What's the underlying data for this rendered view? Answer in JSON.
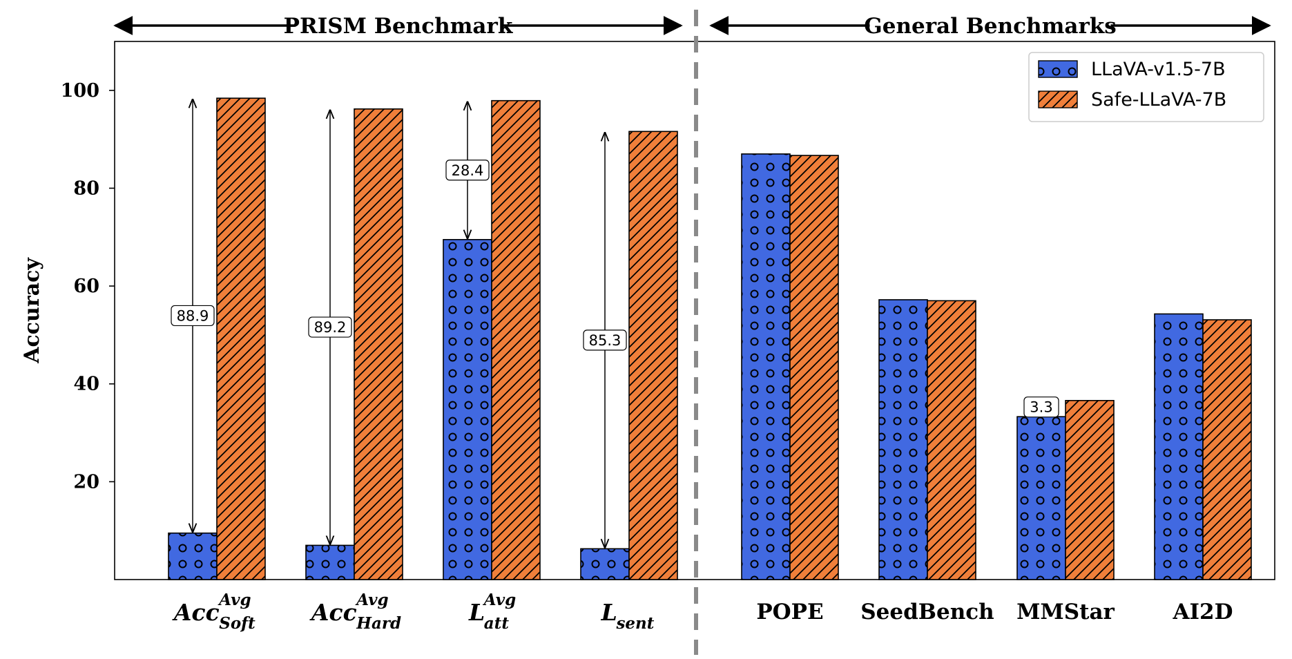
{
  "chart_data": {
    "type": "bar",
    "ylabel": "Accuracy",
    "ylim": [
      0,
      110
    ],
    "yticks": [
      "20",
      "40",
      "60",
      "80",
      "100"
    ],
    "categories": [
      {
        "id": "acc-soft",
        "base": "Acc",
        "sup": "Avg",
        "sub": "Soft"
      },
      {
        "id": "acc-hard",
        "base": "Acc",
        "sup": "Avg",
        "sub": "Hard"
      },
      {
        "id": "l-att",
        "base": "L",
        "sup": "Avg",
        "sub": "att"
      },
      {
        "id": "l-sent",
        "base": "L",
        "sup": "",
        "sub": "sent"
      },
      {
        "id": "pope",
        "base": "POPE",
        "sup": "",
        "sub": ""
      },
      {
        "id": "seedbench",
        "base": "SeedBench",
        "sup": "",
        "sub": ""
      },
      {
        "id": "mmstar",
        "base": "MMStar",
        "sup": "",
        "sub": ""
      },
      {
        "id": "ai2d",
        "base": "AI2D",
        "sup": "",
        "sub": ""
      }
    ],
    "series": [
      {
        "name": "LLaVA-v1.5-7B",
        "color": "#4169e1",
        "pattern": "dots",
        "values": [
          9.5,
          7.0,
          69.5,
          6.3,
          87.0,
          57.2,
          33.3,
          54.3
        ]
      },
      {
        "name": "Safe-LLaVA-7B",
        "color": "#f07f3a",
        "pattern": "hatch",
        "values": [
          98.4,
          96.2,
          97.9,
          91.6,
          86.7,
          57.0,
          36.6,
          53.1
        ]
      }
    ],
    "annotations": [
      {
        "category": 0,
        "label": "88.9",
        "from": 9.5,
        "to": 98.4
      },
      {
        "category": 1,
        "label": "89.2",
        "from": 7.0,
        "to": 96.2
      },
      {
        "category": 2,
        "label": "28.4",
        "from": 69.5,
        "to": 97.9
      },
      {
        "category": 3,
        "label": "85.3",
        "from": 6.3,
        "to": 91.6
      },
      {
        "category": 6,
        "label": "3.3",
        "from": 33.3,
        "to": 36.6
      }
    ],
    "sections": [
      {
        "label": "PRISM Benchmark",
        "from_category": 0,
        "to_category": 3
      },
      {
        "label": "General Benchmarks",
        "from_category": 4,
        "to_category": 7
      }
    ],
    "legend_position": "top-right"
  }
}
